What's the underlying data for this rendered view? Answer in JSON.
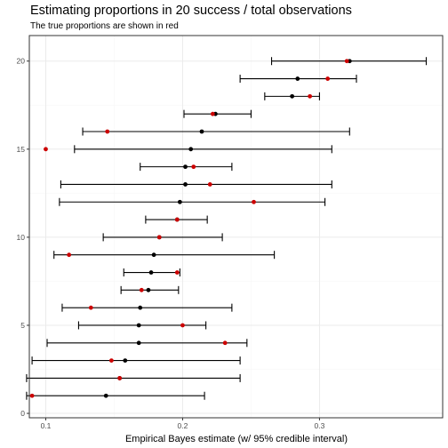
{
  "chart_data": {
    "type": "scatter",
    "title": "Estimating proportions in 20 success / total observations",
    "subtitle": "The true proportions are shown in red",
    "xlabel": "Empirical Bayes estimate (w/ 95% credible interval)",
    "ylabel": "",
    "xlim": [
      0.088,
      0.39
    ],
    "ylim": [
      -0.25,
      21.45
    ],
    "x_ticks": [
      0.1,
      0.2,
      0.3
    ],
    "x_tick_labels": [
      "0.1",
      "0.2",
      "0.3"
    ],
    "y_ticks": [
      0,
      5,
      10,
      15,
      20
    ],
    "y_tick_labels": [
      "0",
      "5",
      "10",
      "15",
      "20"
    ],
    "grid": true,
    "legend": "none",
    "colors": {
      "estimate": "#000000",
      "true_proportion": "#cc0000",
      "interval": "#000000",
      "grid_major": "#ebebeb",
      "grid_minor": "#f5f5f5",
      "panel_border": "#333333"
    },
    "points": [
      {
        "y": 1,
        "estimate": 0.144,
        "lower": 0.086,
        "upper": 0.216,
        "true_value": 0.09
      },
      {
        "y": 2,
        "estimate": 0.154,
        "lower": 0.086,
        "upper": 0.242,
        "true_value": 0.154
      },
      {
        "y": 3,
        "estimate": 0.158,
        "lower": 0.09,
        "upper": 0.242,
        "true_value": 0.148
      },
      {
        "y": 4,
        "estimate": 0.168,
        "lower": 0.101,
        "upper": 0.247,
        "true_value": 0.231
      },
      {
        "y": 5,
        "estimate": 0.168,
        "lower": 0.124,
        "upper": 0.217,
        "true_value": 0.2
      },
      {
        "y": 6,
        "estimate": 0.169,
        "lower": 0.112,
        "upper": 0.236,
        "true_value": 0.133
      },
      {
        "y": 7,
        "estimate": 0.175,
        "lower": 0.155,
        "upper": 0.197,
        "true_value": 0.17
      },
      {
        "y": 8,
        "estimate": 0.177,
        "lower": 0.157,
        "upper": 0.198,
        "true_value": 0.196
      },
      {
        "y": 9,
        "estimate": 0.179,
        "lower": 0.106,
        "upper": 0.267,
        "true_value": 0.117
      },
      {
        "y": 10,
        "estimate": 0.183,
        "lower": 0.142,
        "upper": 0.229,
        "true_value": 0.183
      },
      {
        "y": 11,
        "estimate": 0.196,
        "lower": 0.173,
        "upper": 0.218,
        "true_value": 0.196
      },
      {
        "y": 12,
        "estimate": 0.198,
        "lower": 0.11,
        "upper": 0.304,
        "true_value": 0.252
      },
      {
        "y": 13,
        "estimate": 0.202,
        "lower": 0.111,
        "upper": 0.309,
        "true_value": 0.22
      },
      {
        "y": 14,
        "estimate": 0.202,
        "lower": 0.169,
        "upper": 0.236,
        "true_value": 0.208
      },
      {
        "y": 15,
        "estimate": 0.206,
        "lower": 0.121,
        "upper": 0.309,
        "true_value": 0.1
      },
      {
        "y": 16,
        "estimate": 0.214,
        "lower": 0.127,
        "upper": 0.322,
        "true_value": 0.145
      },
      {
        "y": 17,
        "estimate": 0.224,
        "lower": 0.201,
        "upper": 0.25,
        "true_value": 0.222
      },
      {
        "y": 18,
        "estimate": 0.28,
        "lower": 0.26,
        "upper": 0.3,
        "true_value": 0.293
      },
      {
        "y": 19,
        "estimate": 0.284,
        "lower": 0.242,
        "upper": 0.327,
        "true_value": 0.306
      },
      {
        "y": 20,
        "estimate": 0.322,
        "lower": 0.265,
        "upper": 0.378,
        "true_value": 0.32
      }
    ]
  }
}
